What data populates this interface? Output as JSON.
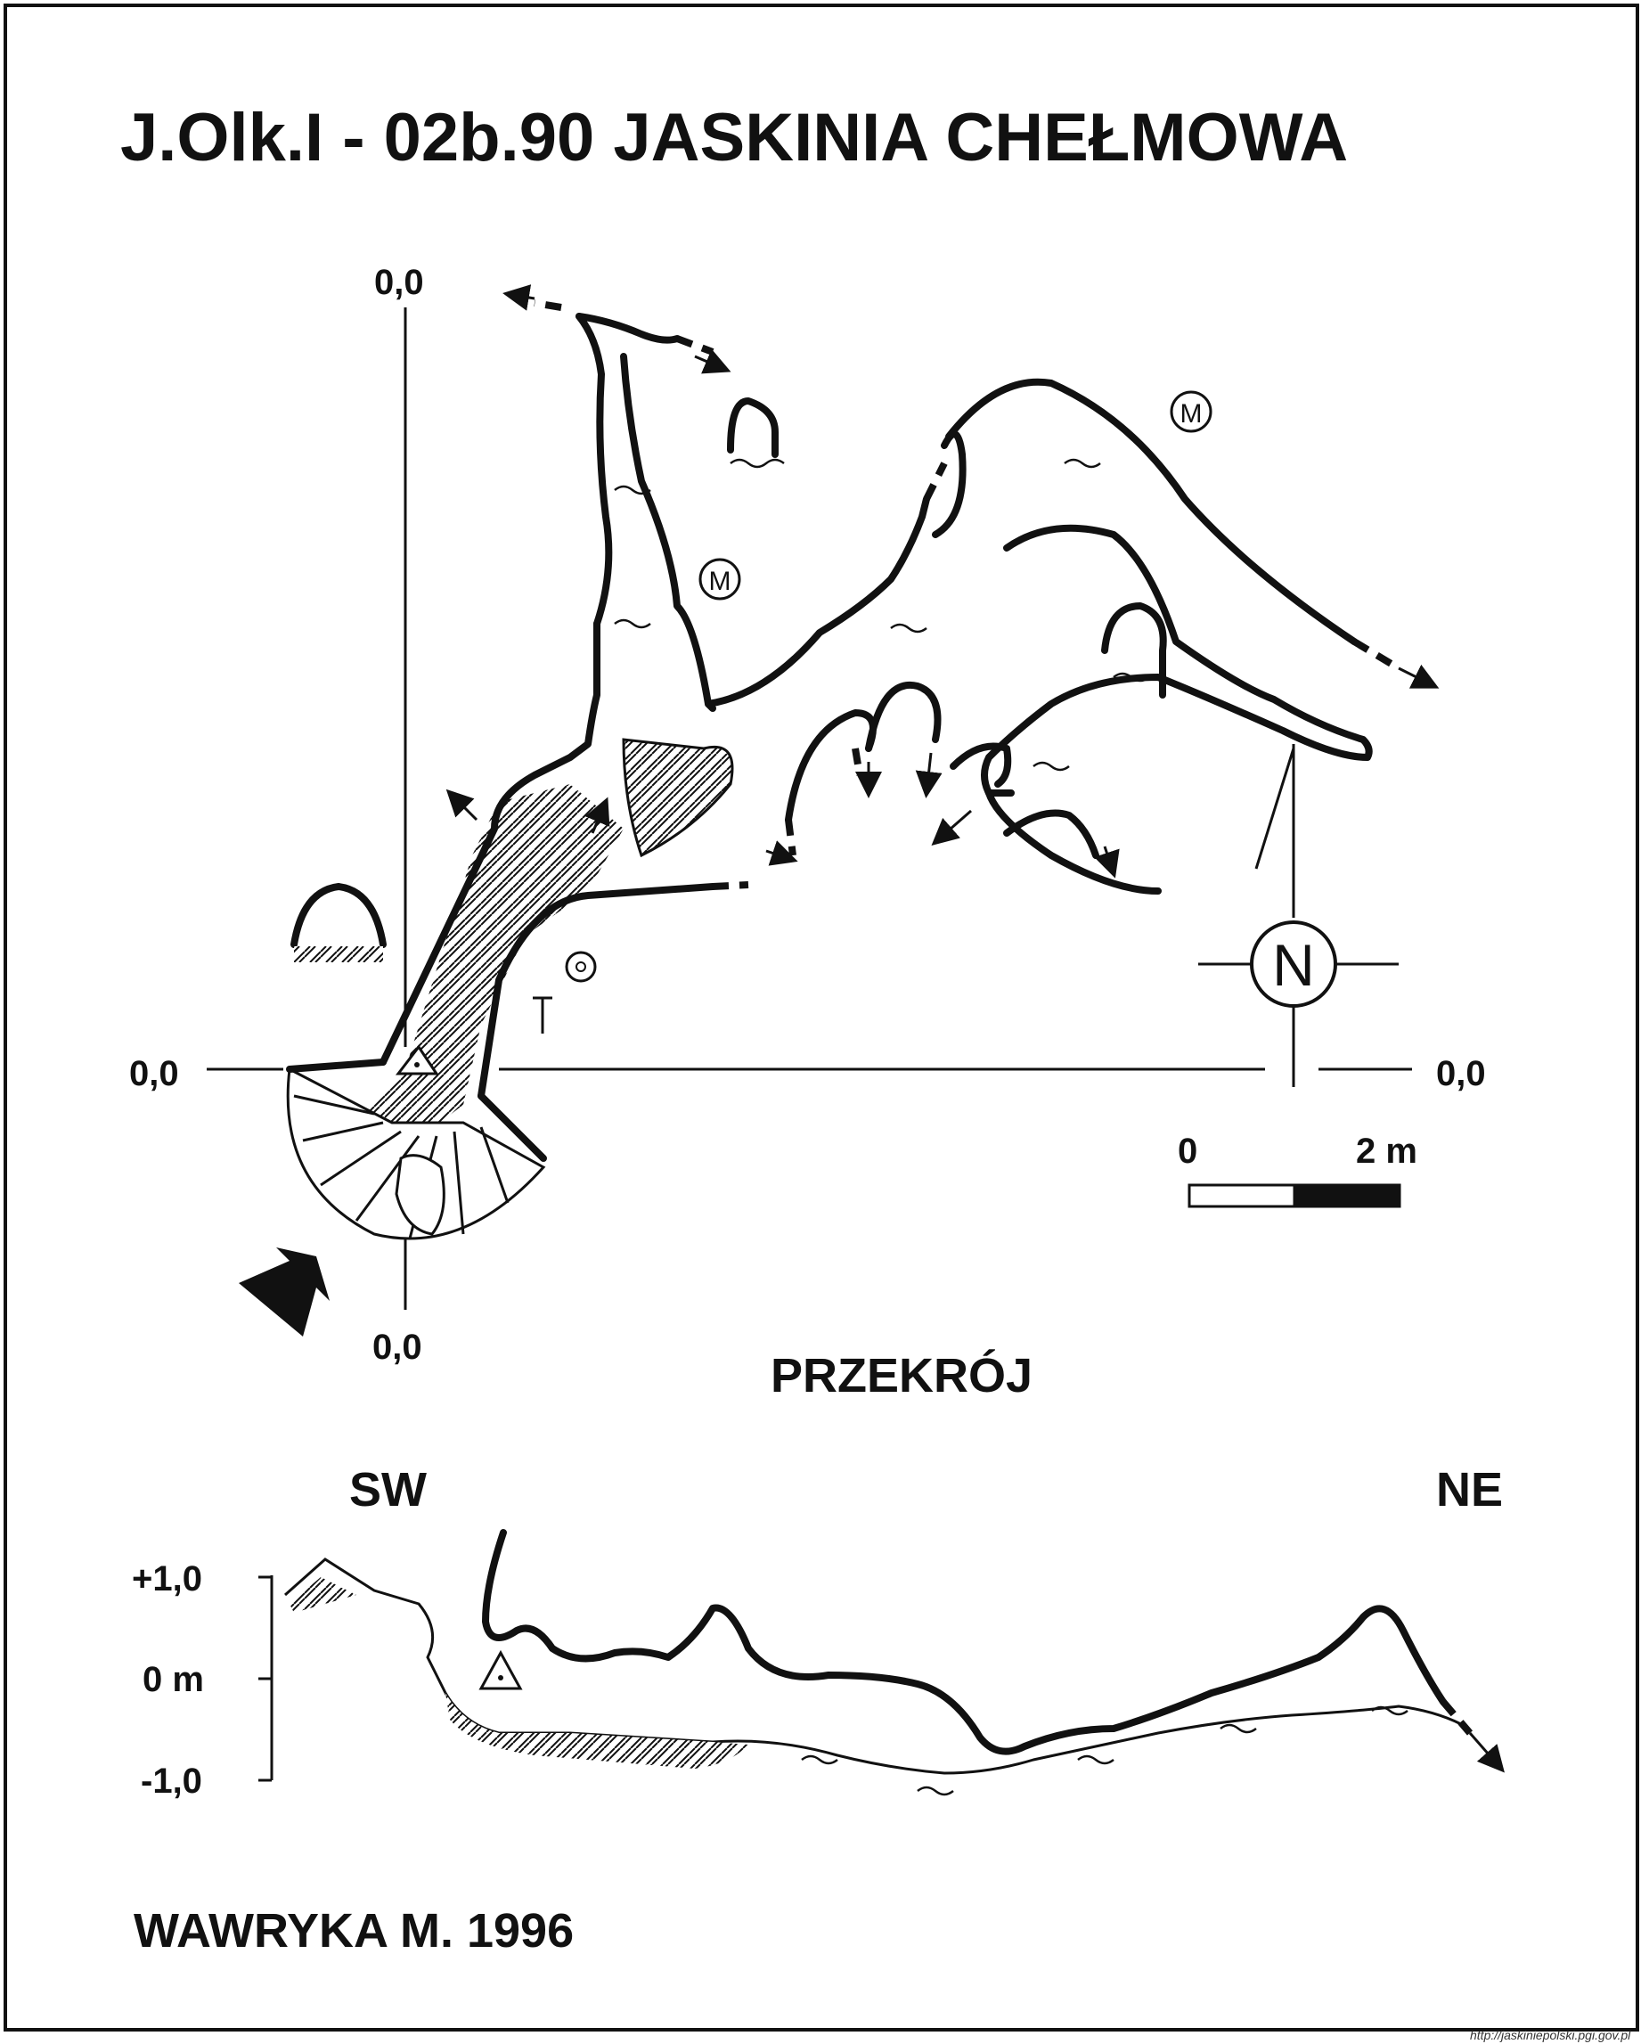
{
  "title": "J.Olk.I - 02b.90  JASKINIA CHEŁMOWA",
  "plan": {
    "axis_label_top": "0,0",
    "axis_label_left": "0,0",
    "axis_label_right": "0,0",
    "axis_label_bottom": "0,0",
    "north_letter": "N",
    "scale_start": "0",
    "scale_end": "2 m",
    "symbols": {
      "M1": "M",
      "M2": "M"
    }
  },
  "section": {
    "title": "PRZEKRÓJ",
    "dir_left": "SW",
    "dir_right": "NE",
    "ticks": [
      "+1,0",
      "0 m",
      "-1,0"
    ]
  },
  "author": "WAWRYKA M. 1996",
  "source": "http://jaskiniepolski.pgi.gov.pl"
}
